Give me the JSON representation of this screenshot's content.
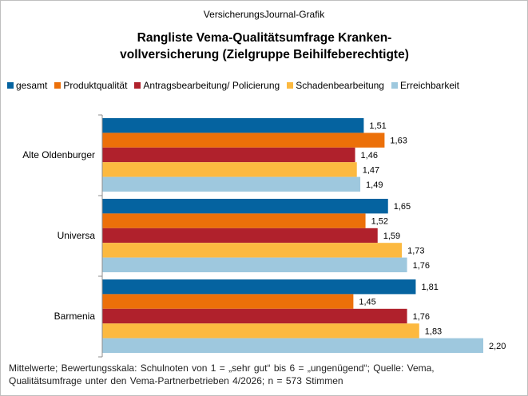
{
  "source_label": "VersicherungsJournal-Grafik",
  "title_line1": "Rangliste Vema-Qualitätsumfrage Kranken-",
  "title_line2": "vollversicherung (Zielgruppe Beihilfeberechtigte)",
  "footnote_line1": "Mittelwerte; Bewertungsskala: Schulnoten von 1 = „sehr gut“ bis 6 = „ungenügend“;  Quelle: Vema,",
  "footnote_line2": "Qualitätsumfrage unter den Vema-Partnerbetrieben 4/2026; n = 573 Stimmen",
  "chart_data": {
    "type": "bar",
    "orientation": "horizontal",
    "categories": [
      "Alte Oldenburger",
      "Universa",
      "Barmenia"
    ],
    "series": [
      {
        "name": "gesamt",
        "color": "#0563a0",
        "values": [
          1.51,
          1.65,
          1.81
        ],
        "labels": [
          "1,51",
          "1,65",
          "1,81"
        ]
      },
      {
        "name": "Produktqualität",
        "color": "#ec7009",
        "values": [
          1.63,
          1.52,
          1.45
        ],
        "labels": [
          "1,63",
          "1,52",
          "1,45"
        ]
      },
      {
        "name": "Antragsbearbeitung/ Policierung",
        "color": "#b0212c",
        "values": [
          1.46,
          1.59,
          1.76
        ],
        "labels": [
          "1,46",
          "1,59",
          "1,76"
        ]
      },
      {
        "name": "Schadenbearbeitung",
        "color": "#fcb940",
        "values": [
          1.47,
          1.73,
          1.83
        ],
        "labels": [
          "1,47",
          "1,73",
          "1,83"
        ]
      },
      {
        "name": "Erreichbarkeit",
        "color": "#9ec8de",
        "values": [
          1.49,
          1.76,
          2.2
        ],
        "labels": [
          "1,49",
          "1,76",
          "2,20"
        ]
      }
    ],
    "xlim": [
      0,
      2.2
    ],
    "legend_position": "top",
    "grid": false
  }
}
